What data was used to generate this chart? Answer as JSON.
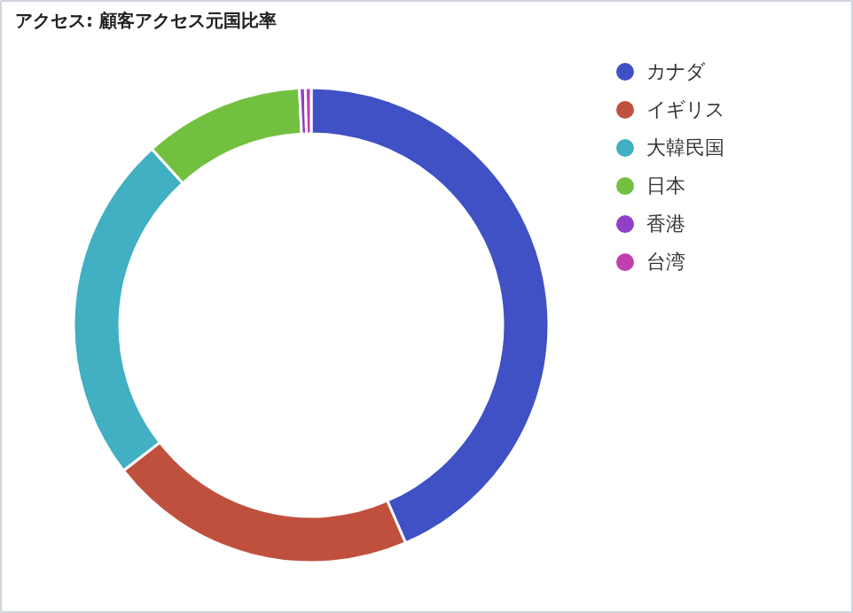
{
  "chart_data": {
    "type": "donut",
    "title": "アクセス: 顧客アクセス元国比率",
    "categories": [
      "カナダ",
      "イギリス",
      "大韓民国",
      "日本",
      "香港",
      "台湾"
    ],
    "values": [
      43.5,
      21,
      23.8,
      10.9,
      0.4,
      0.4
    ],
    "colors": [
      "#3f51c4",
      "#c0503e",
      "#40b0c2",
      "#72c040",
      "#9040c4",
      "#c040b0"
    ],
    "legend": "right"
  }
}
